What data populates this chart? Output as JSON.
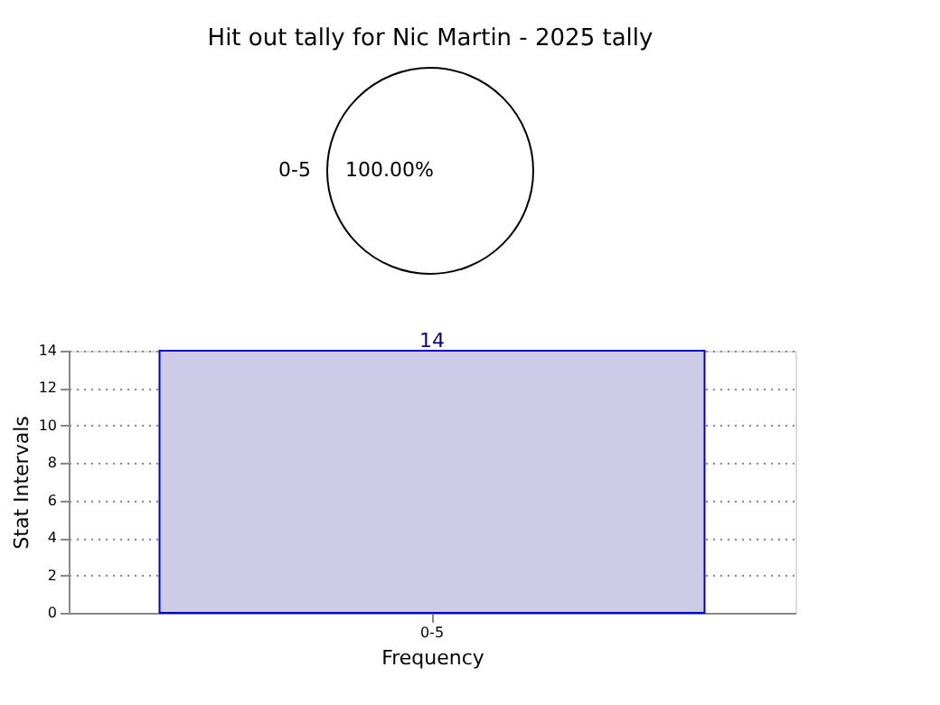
{
  "chart_data": [
    {
      "type": "pie",
      "title": "Hit out tally for Nic Martin - 2025 tally",
      "categories": [
        "0-5"
      ],
      "values": [
        100
      ],
      "colors": [
        "#ffffff"
      ],
      "value_labels": [
        "100.00%"
      ],
      "legend": false
    },
    {
      "type": "bar",
      "categories": [
        "0-5"
      ],
      "values": [
        14
      ],
      "color": "#cccce6",
      "xlabel": "Frequency",
      "ylabel": "Stat Intervals",
      "ylim": [
        0,
        14
      ],
      "yticks": [
        0,
        2,
        4,
        6,
        8,
        10,
        12,
        14
      ],
      "grid": true,
      "data_labels": true
    }
  ]
}
